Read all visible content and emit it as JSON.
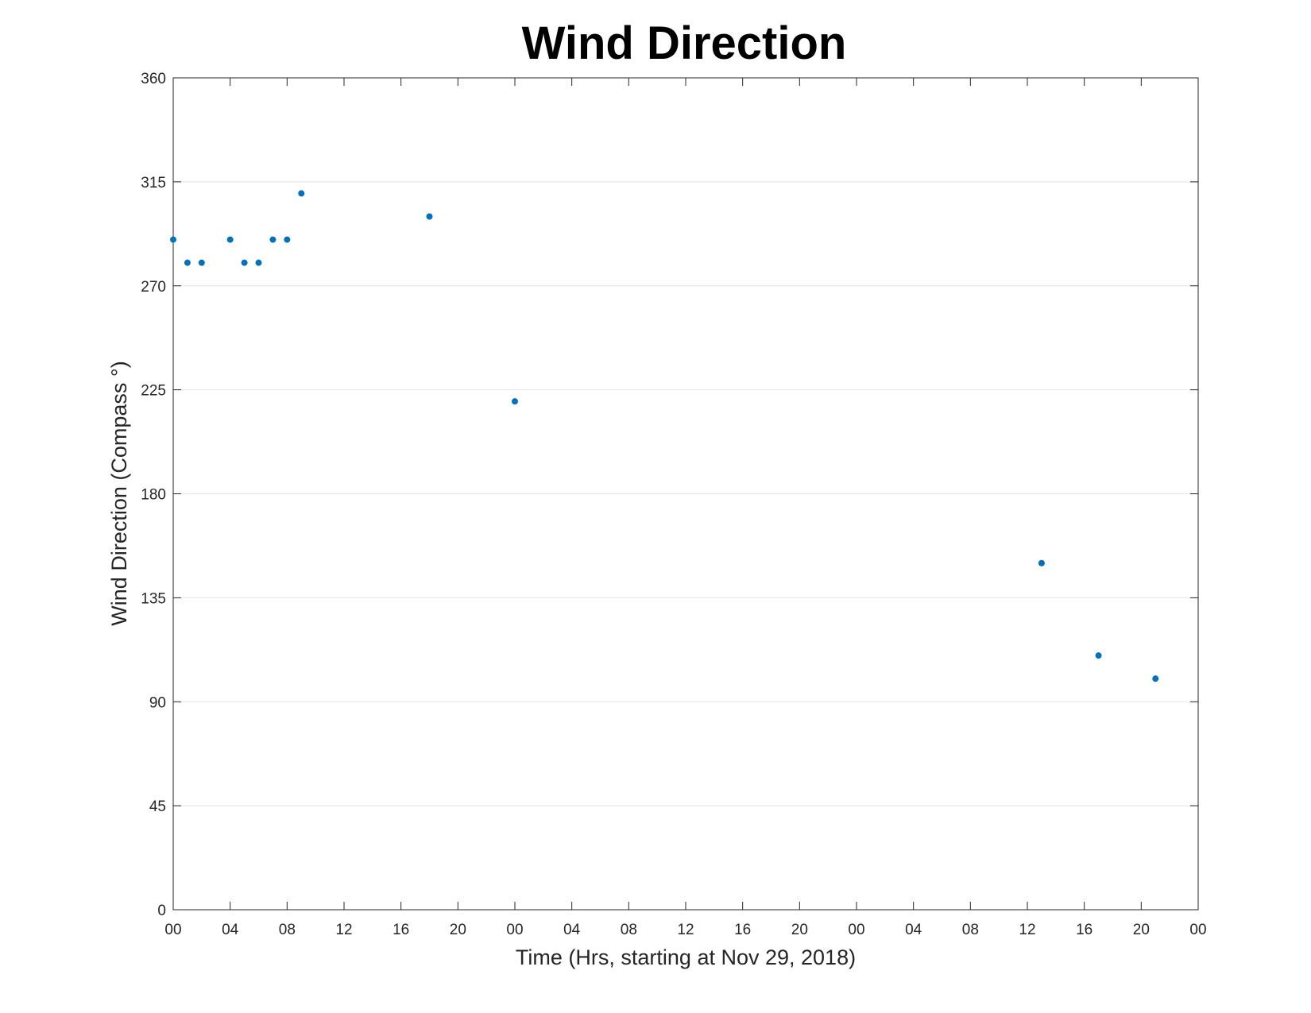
{
  "chart_data": {
    "type": "scatter",
    "title": "Wind Direction",
    "xlabel": "Time (Hrs, starting at Nov 29, 2018)",
    "ylabel": "Wind Direction (Compass °)",
    "x_unit": "hours",
    "xlim": [
      0,
      72
    ],
    "ylim": [
      0,
      360
    ],
    "x_ticks": [
      0,
      4,
      8,
      12,
      16,
      20,
      24,
      28,
      32,
      36,
      40,
      44,
      48,
      52,
      56,
      60,
      64,
      68,
      72
    ],
    "x_tick_labels": [
      "00",
      "04",
      "08",
      "12",
      "16",
      "20",
      "00",
      "04",
      "08",
      "12",
      "16",
      "20",
      "00",
      "04",
      "08",
      "12",
      "16",
      "20",
      "00"
    ],
    "y_ticks": [
      0,
      45,
      90,
      135,
      180,
      225,
      270,
      315,
      360
    ],
    "y_tick_labels": [
      "0",
      "45",
      "90",
      "135",
      "180",
      "225",
      "270",
      "315",
      "360"
    ],
    "grid": "horizontal",
    "marker_color": "#0072BD",
    "series": [
      {
        "points": [
          {
            "x": 0,
            "y": 290
          },
          {
            "x": 1,
            "y": 280
          },
          {
            "x": 2,
            "y": 280
          },
          {
            "x": 4,
            "y": 290
          },
          {
            "x": 5,
            "y": 280
          },
          {
            "x": 6,
            "y": 280
          },
          {
            "x": 7,
            "y": 290
          },
          {
            "x": 8,
            "y": 290
          },
          {
            "x": 9,
            "y": 310
          },
          {
            "x": 18,
            "y": 300
          },
          {
            "x": 24,
            "y": 220
          },
          {
            "x": 61,
            "y": 150
          },
          {
            "x": 65,
            "y": 110
          },
          {
            "x": 69,
            "y": 100
          }
        ]
      }
    ]
  }
}
